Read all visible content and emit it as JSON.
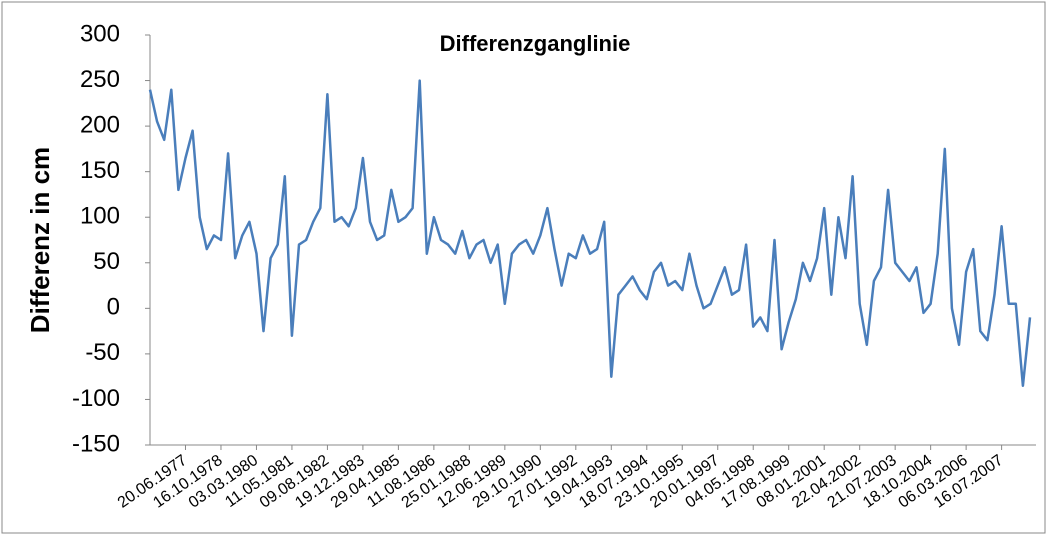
{
  "chart_data": {
    "type": "line",
    "title": "Differenzganglinie",
    "y_label": "Differenz in cm",
    "categories": [
      null,
      null,
      null,
      null,
      null,
      "20.06.1977",
      null,
      null,
      null,
      null,
      "16.10.1978",
      null,
      null,
      null,
      null,
      "03.03.1980",
      null,
      null,
      null,
      null,
      "11.05.1981",
      null,
      null,
      null,
      null,
      "09.08.1982",
      null,
      null,
      null,
      null,
      "19.12.1983",
      null,
      null,
      null,
      null,
      "29.04.1985",
      null,
      null,
      null,
      null,
      "11.08.1986",
      null,
      null,
      null,
      null,
      "25.01.1988",
      null,
      null,
      null,
      null,
      "12.06.1989",
      null,
      null,
      null,
      null,
      "29.10.1990",
      null,
      null,
      null,
      null,
      "27.01.1992",
      null,
      null,
      null,
      null,
      "19.04.1993",
      null,
      null,
      null,
      null,
      "18.07.1994",
      null,
      null,
      null,
      null,
      "23.10.1995",
      null,
      null,
      null,
      null,
      "20.01.1997",
      null,
      null,
      null,
      null,
      "04.05.1998",
      null,
      null,
      null,
      null,
      "17.08.1999",
      null,
      null,
      null,
      null,
      "08.01.2001",
      null,
      null,
      null,
      null,
      "22.04.2002",
      null,
      null,
      null,
      null,
      "21.07.2003",
      null,
      null,
      null,
      null,
      "18.10.2004",
      null,
      null,
      null,
      null,
      "06.03.2006",
      null,
      null,
      null,
      null,
      "16.07.2007",
      null,
      null,
      null,
      null
    ],
    "series": [
      {
        "color": "#4a7ebb",
        "values": [
          240,
          205,
          185,
          240,
          130,
          165,
          195,
          100,
          65,
          80,
          75,
          170,
          55,
          80,
          95,
          60,
          -25,
          55,
          70,
          145,
          -30,
          70,
          75,
          95,
          110,
          235,
          95,
          100,
          90,
          110,
          165,
          95,
          75,
          80,
          130,
          95,
          100,
          110,
          250,
          60,
          100,
          75,
          70,
          60,
          85,
          55,
          70,
          75,
          50,
          70,
          5,
          60,
          70,
          75,
          60,
          80,
          110,
          65,
          25,
          60,
          55,
          80,
          60,
          65,
          95,
          -75,
          15,
          25,
          35,
          20,
          10,
          40,
          50,
          25,
          30,
          20,
          60,
          25,
          0,
          5,
          25,
          45,
          15,
          20,
          70,
          -20,
          -10,
          -25,
          75,
          -45,
          -15,
          10,
          50,
          30,
          55,
          110,
          15,
          100,
          55,
          145,
          5,
          -40,
          30,
          45,
          130,
          50,
          40,
          30,
          45,
          -5,
          5,
          60,
          175,
          0,
          -40,
          40,
          65,
          -25,
          -35,
          15,
          90,
          5,
          5,
          -85,
          -10
        ]
      }
    ],
    "ylim": [
      -150,
      300
    ],
    "yticks": [
      -150,
      -100,
      -50,
      0,
      50,
      100,
      150,
      200,
      250,
      300
    ]
  }
}
